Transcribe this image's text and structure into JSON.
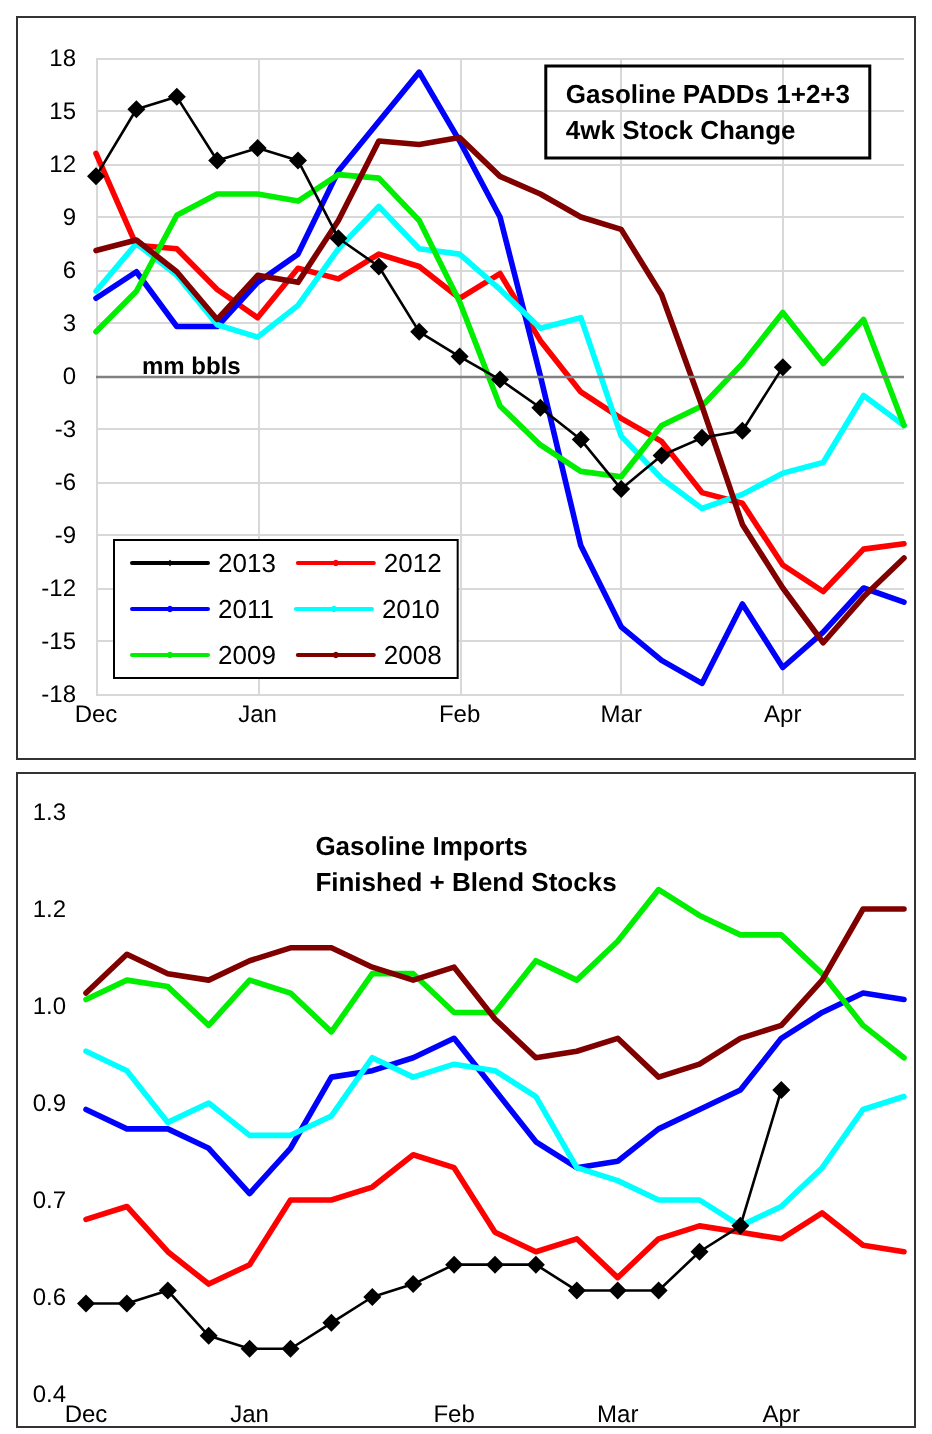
{
  "chart_data": [
    {
      "type": "line",
      "title": "Gasoline PADDs 1+2+3\n4wk Stock Change",
      "ylabel": "mm bbls",
      "categories": [
        "Dec",
        null,
        null,
        null,
        "Jan",
        null,
        null,
        null,
        null,
        "Feb",
        null,
        null,
        null,
        "Mar",
        null,
        null,
        null,
        "Apr",
        null,
        null,
        null
      ],
      "ylim": [
        -18,
        18
      ],
      "yticks": [
        -18,
        -15,
        -12,
        -9,
        -6,
        -3,
        0,
        3,
        6,
        9,
        12,
        15,
        18
      ],
      "grid": true,
      "legend": "bottom left",
      "ref_lines": [
        {
          "axis": "y",
          "value": 0,
          "color": "#808080"
        }
      ],
      "series": [
        {
          "name": "2013",
          "color": "#000000",
          "marker": "diamond",
          "values": [
            11.3,
            15.1,
            15.8,
            12.2,
            12.9,
            12.2,
            7.8,
            6.2,
            2.5,
            1.1,
            -0.2,
            -1.8,
            -3.6,
            -6.4,
            -4.5,
            -3.5,
            -3.1,
            0.5,
            null,
            null,
            null
          ]
        },
        {
          "name": "2012",
          "color": "#ff0000",
          "values": [
            12.6,
            7.4,
            7.2,
            4.9,
            3.3,
            6.1,
            5.5,
            6.9,
            6.2,
            4.4,
            5.8,
            2.0,
            -0.9,
            -2.4,
            -3.7,
            -6.6,
            -7.2,
            -10.7,
            -12.2,
            -9.8,
            -9.5
          ]
        },
        {
          "name": "2011",
          "color": "#0000ff",
          "values": [
            4.4,
            5.9,
            2.8,
            2.8,
            5.3,
            6.9,
            11.6,
            14.4,
            17.2,
            13.3,
            9.0,
            0.0,
            -9.6,
            -14.2,
            -16.1,
            -17.4,
            -12.9,
            -16.5,
            -14.5,
            -12.0,
            -12.8
          ]
        },
        {
          "name": "2010",
          "color": "#00ffff",
          "values": [
            4.8,
            7.5,
            5.7,
            2.9,
            2.2,
            4.0,
            7.2,
            9.6,
            7.2,
            6.9,
            4.9,
            2.7,
            3.3,
            -3.4,
            -5.8,
            -7.5,
            -6.7,
            -5.5,
            -4.9,
            -1.1,
            -2.8
          ]
        },
        {
          "name": "2009",
          "color": "#00ee00",
          "values": [
            2.5,
            4.8,
            9.1,
            10.3,
            10.3,
            9.9,
            11.4,
            11.2,
            8.8,
            4.2,
            -1.7,
            -3.9,
            -5.4,
            -5.7,
            -2.8,
            -1.7,
            0.7,
            3.6,
            0.7,
            3.2,
            -2.8
          ]
        },
        {
          "name": "2008",
          "color": "#800000",
          "values": [
            7.1,
            7.7,
            5.9,
            3.2,
            5.7,
            5.3,
            8.8,
            13.3,
            13.1,
            13.5,
            11.3,
            10.3,
            9.0,
            8.3,
            4.6,
            -1.7,
            -8.4,
            -12.0,
            -15.1,
            -12.5,
            -10.3
          ]
        }
      ]
    },
    {
      "type": "line",
      "title": "Gasoline Imports\nFinished + Blend Stocks",
      "categories": [
        "Dec",
        null,
        null,
        null,
        "Jan",
        null,
        null,
        null,
        null,
        "Feb",
        null,
        null,
        null,
        "Mar",
        null,
        null,
        null,
        "Apr",
        null,
        null,
        null
      ],
      "ylim": [
        0.4,
        1.3
      ],
      "yticks": [
        {
          "value": 0.4,
          "label": "0.4"
        },
        {
          "value": 0.55,
          "label": "0.6"
        },
        {
          "value": 0.7,
          "label": "0.7"
        },
        {
          "value": 0.85,
          "label": "0.9"
        },
        {
          "value": 1.0,
          "label": "1.0"
        },
        {
          "value": 1.15,
          "label": "1.2"
        },
        {
          "value": 1.3,
          "label": "1.3"
        }
      ],
      "series": [
        {
          "color": "#000000",
          "marker": "diamond",
          "values": [
            0.54,
            0.54,
            0.56,
            0.49,
            0.47,
            0.47,
            0.51,
            0.55,
            0.57,
            0.6,
            0.6,
            0.6,
            0.56,
            0.56,
            0.56,
            0.62,
            0.66,
            0.87,
            null,
            null,
            null
          ]
        },
        {
          "color": "#ff0000",
          "values": [
            0.67,
            0.69,
            0.62,
            0.57,
            0.6,
            0.7,
            0.7,
            0.72,
            0.77,
            0.75,
            0.65,
            0.62,
            0.64,
            0.58,
            0.64,
            0.66,
            0.65,
            0.64,
            0.68,
            0.63,
            0.62
          ]
        },
        {
          "color": "#0000ff",
          "values": [
            0.84,
            0.81,
            0.81,
            0.78,
            0.71,
            0.78,
            0.89,
            0.9,
            0.92,
            0.95,
            0.87,
            0.79,
            0.75,
            0.76,
            0.81,
            0.84,
            0.87,
            0.95,
            0.99,
            1.02,
            1.01
          ]
        },
        {
          "color": "#00ffff",
          "values": [
            0.93,
            0.9,
            0.82,
            0.85,
            0.8,
            0.8,
            0.83,
            0.92,
            0.89,
            0.91,
            0.9,
            0.86,
            0.75,
            0.73,
            0.7,
            0.7,
            0.66,
            0.69,
            0.75,
            0.84,
            0.86
          ]
        },
        {
          "color": "#00ee00",
          "values": [
            1.01,
            1.04,
            1.03,
            0.97,
            1.04,
            1.02,
            0.96,
            1.05,
            1.05,
            0.99,
            0.99,
            1.07,
            1.04,
            1.1,
            1.18,
            1.14,
            1.11,
            1.11,
            1.05,
            0.97,
            0.92
          ]
        },
        {
          "color": "#800000",
          "values": [
            1.02,
            1.08,
            1.05,
            1.04,
            1.07,
            1.09,
            1.09,
            1.06,
            1.04,
            1.06,
            0.98,
            0.92,
            0.93,
            0.95,
            0.89,
            0.91,
            0.95,
            0.97,
            1.04,
            1.15,
            1.15
          ]
        }
      ]
    }
  ]
}
